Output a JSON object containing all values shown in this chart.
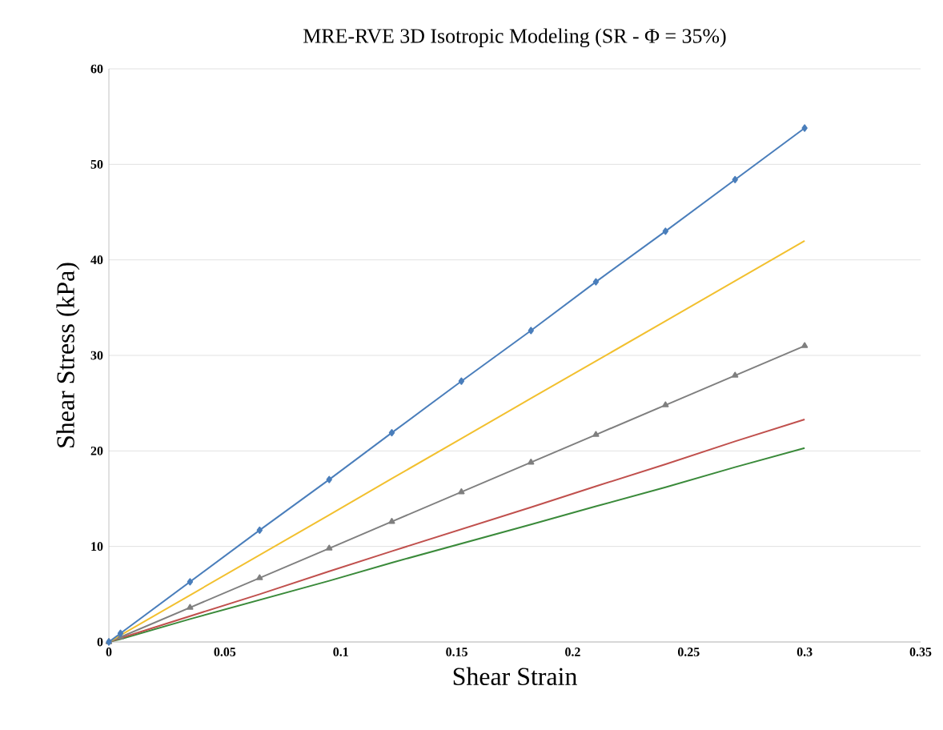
{
  "chart_data": {
    "type": "line",
    "title": "MRE-RVE 3D Isotropic Modeling (SR - Φ = 35%)",
    "xlabel": "Shear Strain",
    "ylabel": "Shear Stress (kPa)",
    "x": [
      0,
      0.005,
      0.035,
      0.065,
      0.095,
      0.122,
      0.152,
      0.182,
      0.21,
      0.24,
      0.27,
      0.3
    ],
    "xlim": [
      0,
      0.35
    ],
    "ylim": [
      0,
      60
    ],
    "xticks": [
      0,
      0.05,
      0.1,
      0.15,
      0.2,
      0.25,
      0.3,
      0.35
    ],
    "yticks": [
      0,
      10,
      20,
      30,
      40,
      50,
      60
    ],
    "grid": "y",
    "series": [
      {
        "color": "#3a8a3a",
        "marker": "none",
        "values": [
          0,
          0.3,
          2.4,
          4.4,
          6.4,
          8.3,
          10.3,
          12.3,
          14.2,
          16.2,
          18.3,
          20.3
        ]
      },
      {
        "color": "#c0504d",
        "marker": "none",
        "values": [
          0,
          0.4,
          2.7,
          5,
          7.4,
          9.5,
          11.8,
          14.1,
          16.3,
          18.6,
          21,
          23.3
        ]
      },
      {
        "color": "#7f7f7f",
        "marker": "triangle",
        "values": [
          0,
          0.5,
          3.6,
          6.7,
          9.8,
          12.6,
          15.7,
          18.8,
          21.7,
          24.8,
          27.9,
          31
        ]
      },
      {
        "color": "#f2c02f",
        "marker": "none",
        "values": [
          0,
          0.7,
          4.9,
          9.1,
          13.3,
          17.1,
          21.3,
          25.5,
          29.4,
          33.6,
          37.8,
          42
        ]
      },
      {
        "color": "#4a7ebb",
        "marker": "diamond",
        "values": [
          0,
          0.9,
          6.3,
          11.7,
          17,
          21.9,
          27.3,
          32.6,
          37.7,
          43,
          48.4,
          53.8
        ]
      }
    ]
  }
}
